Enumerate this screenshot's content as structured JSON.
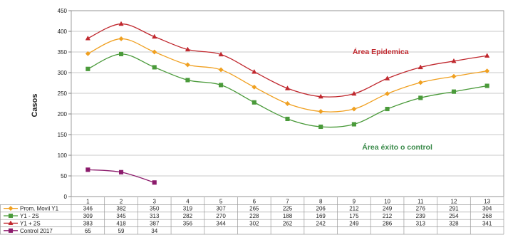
{
  "chart_data": {
    "type": "line",
    "title": "",
    "xlabel": "",
    "ylabel": "Casos",
    "ylim": [
      0,
      450
    ],
    "yticks": [
      0,
      50,
      100,
      150,
      200,
      250,
      300,
      350,
      400,
      450
    ],
    "categories": [
      "1",
      "2",
      "3",
      "4",
      "5",
      "6",
      "7",
      "8",
      "9",
      "10",
      "11",
      "12",
      "13"
    ],
    "grid": true,
    "legend": "data-table-left",
    "series": [
      {
        "name": "Prom.  Movil Y1",
        "color": "#f0a020",
        "marker": "diamond",
        "values": [
          346,
          382,
          350,
          319,
          307,
          265,
          225,
          206,
          212,
          249,
          276,
          291,
          304
        ]
      },
      {
        "name": "Y1 - 2S",
        "color": "#4a9a3a",
        "marker": "square",
        "values": [
          309,
          345,
          313,
          282,
          270,
          228,
          188,
          169,
          175,
          212,
          239,
          254,
          268
        ]
      },
      {
        "name": "Y1 + 2S",
        "color": "#c0282e",
        "marker": "triangle",
        "values": [
          383,
          418,
          387,
          356,
          344,
          302,
          262,
          242,
          249,
          286,
          313,
          328,
          341
        ]
      },
      {
        "name": "Control 2017",
        "color": "#8b1a6b",
        "marker": "square",
        "values": [
          65,
          59,
          34,
          null,
          null,
          null,
          null,
          null,
          null,
          null,
          null,
          null,
          null
        ]
      }
    ],
    "annotations": [
      {
        "text": "Área Epidemica",
        "x": 9.8,
        "y": 345,
        "color": "#c0282e"
      },
      {
        "text": "Área éxito o control",
        "x": 10.3,
        "y": 114,
        "color": "#3a8a4a"
      }
    ]
  }
}
